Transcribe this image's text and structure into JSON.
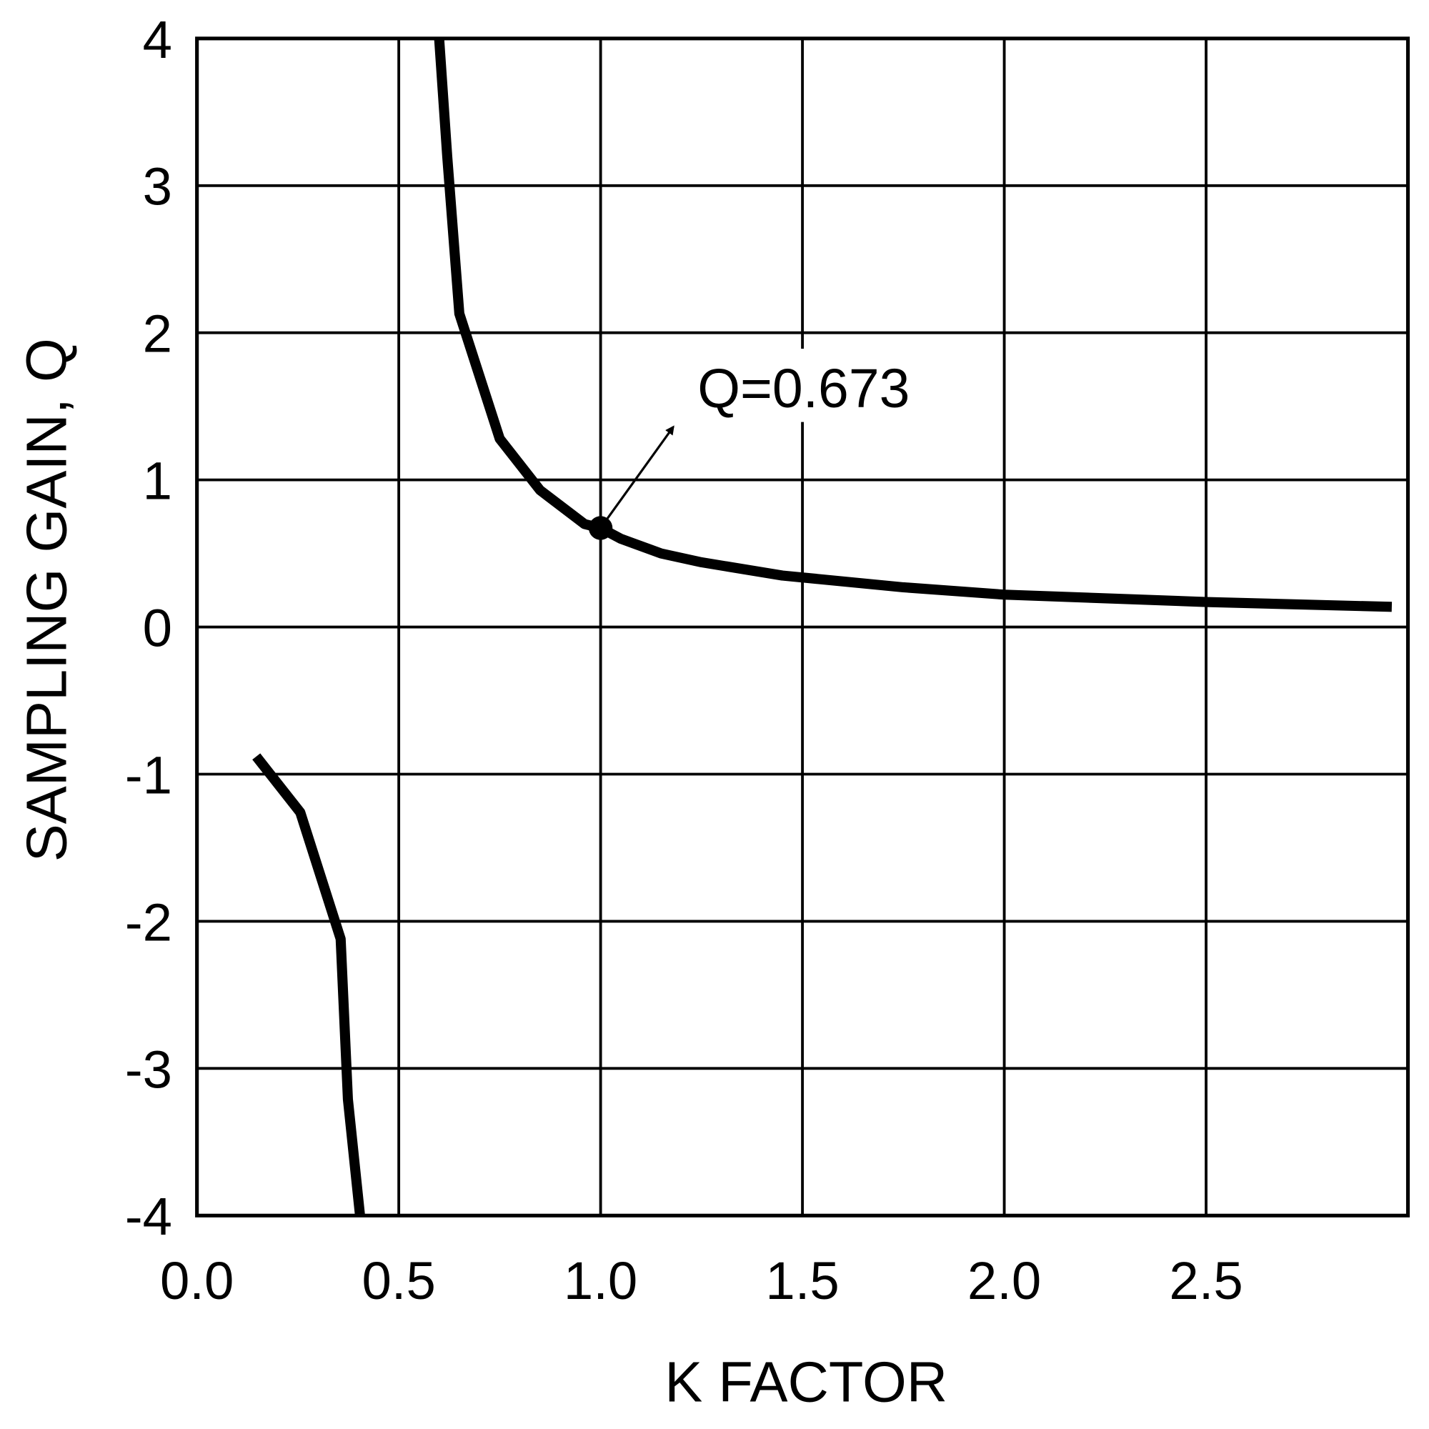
{
  "chart_data": {
    "type": "line",
    "title": "",
    "xlabel": "K FACTOR",
    "ylabel": "SAMPLING GAIN, Q",
    "xlim": [
      0,
      3
    ],
    "ylim": [
      -4,
      4
    ],
    "x_ticks": [
      0,
      0.5,
      1,
      1.5,
      2,
      2.5
    ],
    "x_tick_labels": [
      "0.0",
      "0.5",
      "1.0",
      "1.5",
      "2.0",
      "2.5"
    ],
    "y_ticks": [
      4,
      3,
      2,
      1,
      0,
      -1,
      -2,
      -3,
      -4
    ],
    "y_tick_labels": [
      "4",
      "3",
      "2",
      "1",
      "0",
      "-1",
      "-2",
      "-3",
      "-4"
    ],
    "grid": true,
    "grid_x_step": 0.5,
    "grid_y_step": 1,
    "line_color": "#000000",
    "series": [
      {
        "x": [
          0.6,
          0.62,
          0.65,
          0.75,
          0.85,
          0.96,
          1.0,
          1.05,
          1.15,
          1.25,
          1.45,
          1.75,
          2.0,
          2.5,
          2.96
        ],
        "y": [
          4.0,
          3.2,
          2.13,
          1.28,
          0.93,
          0.7,
          0.673,
          0.6,
          0.5,
          0.44,
          0.35,
          0.27,
          0.22,
          0.17,
          0.137
        ]
      },
      {
        "x": [
          0.147,
          0.256,
          0.356,
          0.374,
          0.404
        ],
        "y": [
          -0.88,
          -1.26,
          -2.12,
          -3.21,
          -4.0
        ]
      }
    ],
    "annotations": [
      {
        "text": "Q=0.673",
        "point": [
          1.0,
          0.673
        ],
        "arrow_to": [
          1.18,
          1.36
        ],
        "text_at": [
          1.24,
          1.63
        ]
      }
    ]
  }
}
